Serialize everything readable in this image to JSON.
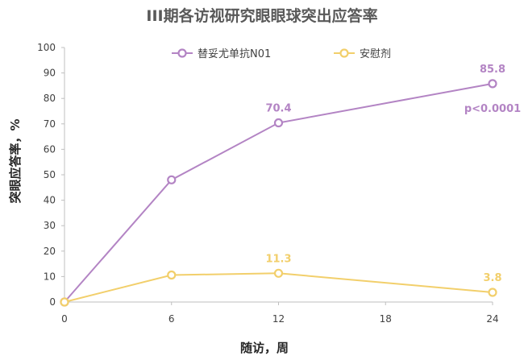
{
  "chart_data": {
    "type": "line",
    "title": "III期各访视研究眼眼球突出应答率",
    "xlabel": "随访，周",
    "ylabel": "突眼应答率，%",
    "x": [
      0,
      6,
      12,
      24
    ],
    "xticks": [
      0,
      6,
      12,
      18,
      24
    ],
    "xlim": [
      0,
      24
    ],
    "ylim": [
      0,
      100
    ],
    "yticks": [
      0,
      10,
      20,
      30,
      40,
      50,
      60,
      70,
      80,
      90,
      100
    ],
    "grid": false,
    "legend": "top",
    "series": [
      {
        "name": "替妥尤单抗N01",
        "color": "#B384C4",
        "values": [
          0,
          48,
          70.4,
          85.8
        ],
        "labels": [
          "",
          "",
          "70.4",
          "85.8"
        ]
      },
      {
        "name": "安慰剂",
        "color": "#F2CF6B",
        "values": [
          0,
          10.6,
          11.3,
          3.8
        ],
        "labels": [
          "",
          "",
          "11.3",
          "3.8"
        ]
      }
    ],
    "annotations": [
      {
        "text": "p<0.0001",
        "x": 24,
        "y": 76,
        "color": "#B384C4"
      }
    ]
  }
}
